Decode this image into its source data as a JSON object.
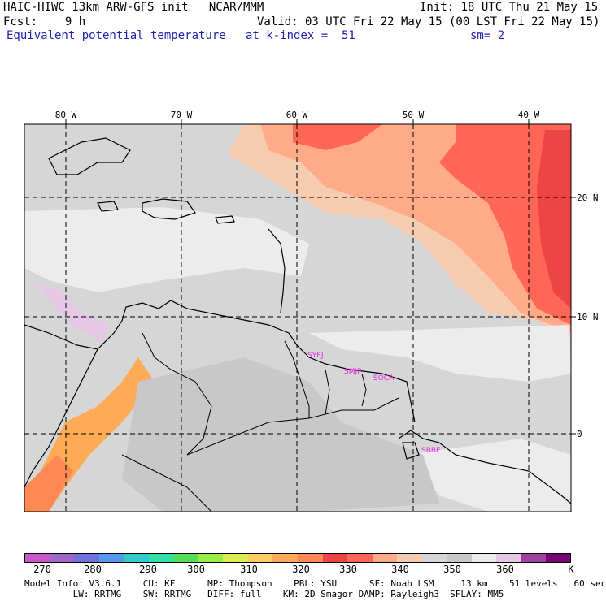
{
  "header": {
    "line1_left": "HAIC-HIWC 13km ARW-GFS init   NCAR/MMM",
    "line1_right": "Init: 18 UTC Thu 21 May 15",
    "line2_left": "Fcst:    9 h",
    "line2_right": "Valid: 03 UTC Fri 22 May 15 (00 LST Fri 22 May 15)",
    "line3_field": "Equivalent potential temperature",
    "line3_level": "at k-index =  51",
    "line3_smooth": "sm= 2"
  },
  "map": {
    "lon_labels": [
      "80 W",
      "70 W",
      "60 W",
      "50 W",
      "40 W"
    ],
    "lat_labels": [
      "20 N",
      "10 N",
      "0"
    ],
    "stations": [
      "SYEJ",
      "SMJP",
      "SOCA",
      "SBBE"
    ],
    "colors": {
      "c270": "#cc55cc",
      "c275": "#a066cc",
      "c280": "#7070e0",
      "c285": "#5599ee",
      "c290": "#33cccc",
      "c295": "#33e0aa",
      "c300": "#55dd55",
      "c305": "#99ee44",
      "c310": "#ddee55",
      "c315": "#ffcc66",
      "c320": "#ffaa55",
      "c325": "#ff8855",
      "c330": "#ee4444",
      "c335": "#ff6655",
      "c340": "#ffaa88",
      "c345": "#f5ccb0",
      "c350": "#d6d6d6",
      "c355": "#c8c8c8",
      "c360": "#ececec",
      "c365": "#e6c8e6",
      "c370": "#a040a0",
      "c375": "#7a007a",
      "station_color": "#ee22ee"
    }
  },
  "legend": {
    "labels": [
      "270",
      "280",
      "290",
      "300",
      "310",
      "320",
      "330",
      "340",
      "350",
      "360"
    ],
    "unit": "K"
  },
  "footer": {
    "line1": "Model Info: V3.6.1    CU: KF      MP: Thompson    PBL: YSU      SF: Noah LSM     13 km    51 levels   60 sec",
    "line2": "         LW: RRTMG    SW: RRTMG   DIFF: full    KM: 2D Smagor DAMP: Rayleigh3  SFLAY: MM5"
  }
}
